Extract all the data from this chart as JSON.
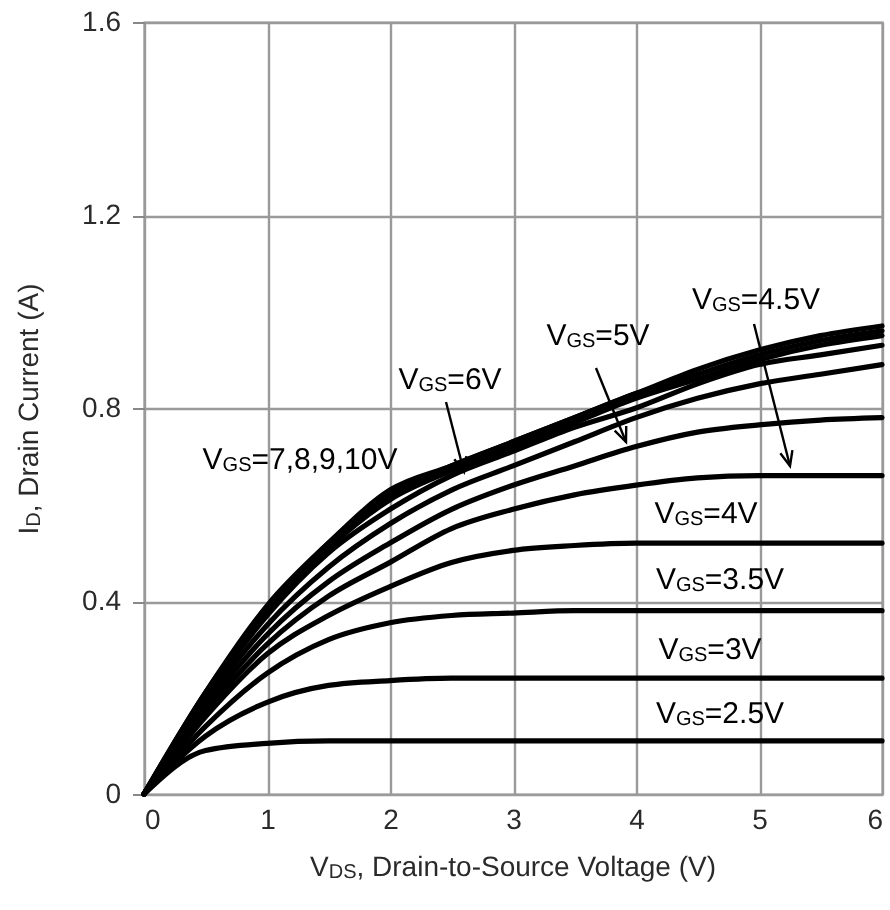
{
  "chart_data": {
    "type": "line",
    "xlabel": "V$_{DS}$, Drain-to-Source Voltage (V)",
    "ylabel": "I$_{D}$, Drain Current (A)",
    "x": [
      0,
      0.5,
      1,
      1.5,
      2,
      2.5,
      3,
      3.5,
      4,
      4.5,
      5,
      5.5,
      6
    ],
    "series": [
      {
        "color": "#000000",
        "values": [
          0,
          0.09,
          0.105,
          0.11,
          0.11,
          0.11,
          0.11,
          0.11,
          0.11,
          0.11,
          0.11,
          0.11,
          0.11
        ]
      },
      {
        "color": "#000000",
        "values": [
          0,
          0.12,
          0.19,
          0.225,
          0.235,
          0.24,
          0.24,
          0.24,
          0.24,
          0.24,
          0.24,
          0.24,
          0.24
        ]
      },
      {
        "color": "#000000",
        "values": [
          0,
          0.14,
          0.25,
          0.32,
          0.355,
          0.37,
          0.375,
          0.38,
          0.38,
          0.38,
          0.38,
          0.38,
          0.38
        ]
      },
      {
        "color": "#000000",
        "values": [
          0,
          0.16,
          0.29,
          0.37,
          0.43,
          0.48,
          0.505,
          0.515,
          0.52,
          0.52,
          0.52,
          0.52,
          0.52
        ]
      },
      {
        "color": "#000000",
        "values": [
          0,
          0.17,
          0.31,
          0.41,
          0.48,
          0.55,
          0.59,
          0.62,
          0.64,
          0.655,
          0.66,
          0.66,
          0.66
        ]
      },
      {
        "color": "#000000",
        "values": [
          0,
          0.18,
          0.33,
          0.44,
          0.52,
          0.59,
          0.64,
          0.68,
          0.72,
          0.75,
          0.765,
          0.775,
          0.78
        ]
      },
      {
        "color": "#000000",
        "values": [
          0,
          0.19,
          0.35,
          0.47,
          0.56,
          0.63,
          0.68,
          0.73,
          0.78,
          0.82,
          0.85,
          0.87,
          0.89
        ]
      },
      {
        "color": "#000000",
        "values": [
          0,
          0.2,
          0.37,
          0.5,
          0.59,
          0.66,
          0.71,
          0.76,
          0.8,
          0.85,
          0.89,
          0.91,
          0.93
        ]
      },
      {
        "color": "#000000",
        "values": [
          0,
          0.2,
          0.38,
          0.51,
          0.61,
          0.67,
          0.72,
          0.77,
          0.82,
          0.86,
          0.9,
          0.93,
          0.95
        ]
      },
      {
        "color": "#000000",
        "values": [
          0,
          0.21,
          0.38,
          0.52,
          0.62,
          0.68,
          0.73,
          0.78,
          0.83,
          0.87,
          0.91,
          0.94,
          0.96
        ]
      },
      {
        "color": "#000000",
        "values": [
          0,
          0.21,
          0.39,
          0.52,
          0.63,
          0.68,
          0.73,
          0.78,
          0.83,
          0.88,
          0.92,
          0.95,
          0.97
        ]
      }
    ],
    "annotations": [
      "V$_{GS}$=7,8,9,10V",
      "V$_{GS}$=6V",
      "V$_{GS}$=5V",
      "V$_{GS}$=4.5V",
      "V$_{GS}$=4V",
      "V$_{GS}$=3.5V",
      "V$_{GS}$=3V",
      "V$_{GS}$=2.5V"
    ],
    "xlim": [
      0,
      6
    ],
    "xticks": [
      0,
      1,
      2,
      3,
      4,
      5,
      6
    ],
    "ylim": [
      0,
      1.6
    ],
    "yticks": [
      0,
      0.4,
      0.8,
      1.2,
      1.6
    ],
    "grid": true,
    "line_style": "solid"
  }
}
